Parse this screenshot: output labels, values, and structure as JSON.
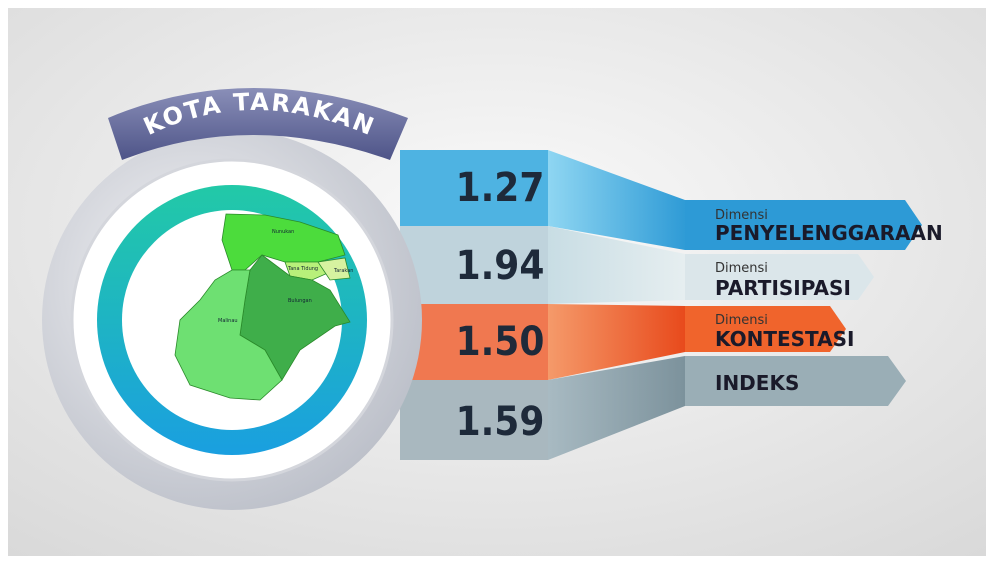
{
  "title": "KOTA TARAKAN",
  "map": {
    "regions": [
      "Nunukan",
      "Tana Tidung",
      "Tarakan",
      "Bulungan",
      "Malinau"
    ]
  },
  "rows": [
    {
      "value": "1.27",
      "prefix": "Dimensi",
      "label": "PENYELENGGARAAN"
    },
    {
      "value": "1.94",
      "prefix": "Dimensi",
      "label": "PARTISIPASI"
    },
    {
      "value": "1.50",
      "prefix": "Dimensi",
      "label": "KONTESTASI"
    },
    {
      "value": "1.59",
      "label": "INDEKS"
    }
  ]
}
